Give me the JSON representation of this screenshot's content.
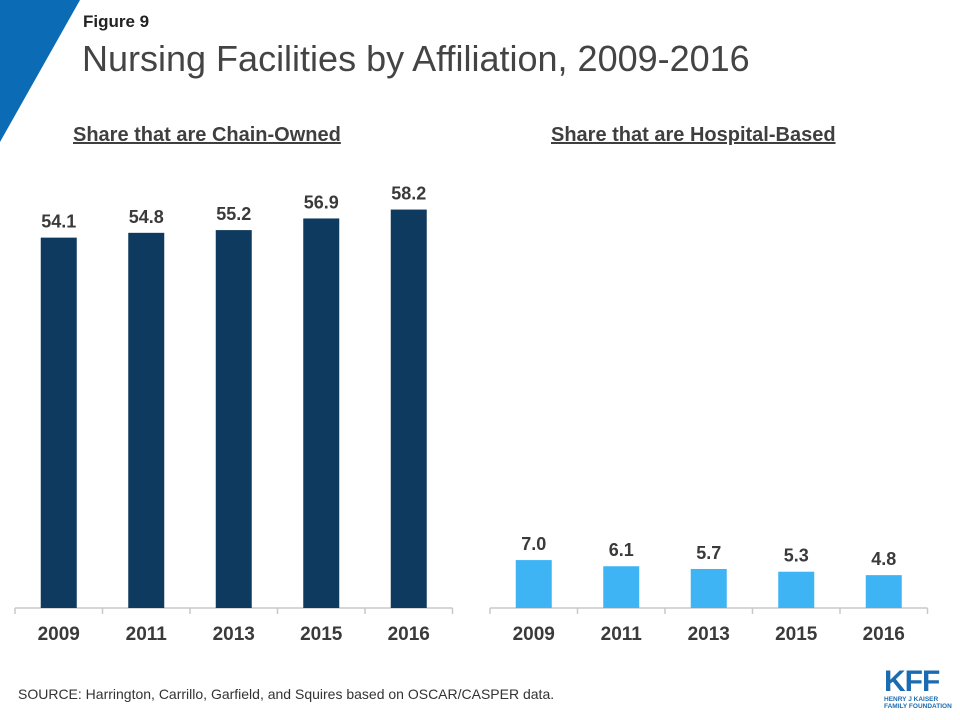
{
  "figure_label": "Figure 9",
  "title": "Nursing Facilities by Affiliation, 2009-2016",
  "source": "SOURCE: Harrington,  Carrillo, Garfield, and Squires based on OSCAR/CASPER data.",
  "logo": {
    "letters": "KFF",
    "line1": "HENRY J KAISER",
    "line2": "FAMILY FOUNDATION"
  },
  "colors": {
    "accent_corner": "#0b6cb5",
    "chain_bar": "#0f3a5f",
    "hospital_bar": "#3eb4f5",
    "axis": "#c8c8c8"
  },
  "chart_data": [
    {
      "type": "bar",
      "title": "Share that are Chain-Owned",
      "categories": [
        "2009",
        "2011",
        "2013",
        "2015",
        "2016"
      ],
      "values": [
        54.1,
        54.8,
        55.2,
        56.9,
        58.2
      ],
      "value_labels": [
        "54.1",
        "54.8",
        "55.2",
        "56.9",
        "58.2"
      ],
      "ylim": [
        0,
        65
      ],
      "color": "#0f3a5f"
    },
    {
      "type": "bar",
      "title": "Share that are Hospital-Based",
      "categories": [
        "2009",
        "2011",
        "2013",
        "2015",
        "2016"
      ],
      "values": [
        7.0,
        6.1,
        5.7,
        5.3,
        4.8
      ],
      "value_labels": [
        "7.0",
        "6.1",
        "5.7",
        "5.3",
        "4.8"
      ],
      "ylim": [
        0,
        65
      ],
      "color": "#3eb4f5"
    }
  ]
}
